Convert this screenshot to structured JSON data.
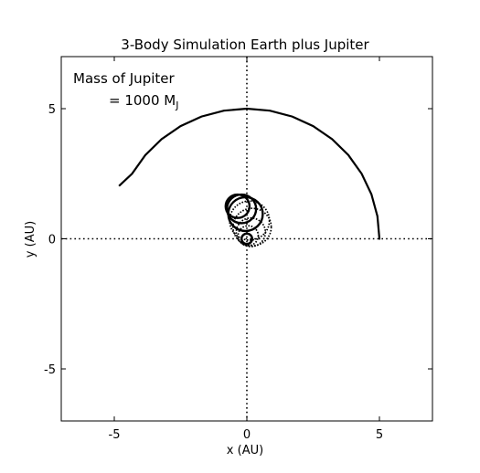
{
  "chart_data": {
    "type": "line",
    "title": "3-Body Simulation   Earth plus Jupiter",
    "xlabel": "x (AU)",
    "ylabel": "y (AU)",
    "xlim": [
      -7,
      7
    ],
    "ylim": [
      -7,
      7
    ],
    "xticks": [
      {
        "value": -5,
        "label": "-5"
      },
      {
        "value": 0,
        "label": "0"
      },
      {
        "value": 5,
        "label": "5"
      }
    ],
    "yticks": [
      {
        "value": -5,
        "label": "-5"
      },
      {
        "value": 0,
        "label": "0"
      },
      {
        "value": 5,
        "label": "5"
      }
    ],
    "grid": false,
    "annotation": {
      "line1": "Mass of Jupiter",
      "line2": "= 1000 M",
      "subscript": "J"
    },
    "series": [
      {
        "style": "solid",
        "x": [
          5.0,
          4.924,
          4.698,
          4.33,
          3.83,
          3.214,
          2.5,
          1.71,
          0.868,
          0.0,
          -0.868,
          -1.71,
          -2.5,
          -3.214,
          -3.83,
          -4.33,
          -4.8
        ],
        "y": [
          0.0,
          0.868,
          1.71,
          2.5,
          3.214,
          3.83,
          4.33,
          4.698,
          4.924,
          5.0,
          4.924,
          4.698,
          4.33,
          3.83,
          3.214,
          2.5,
          2.05
        ]
      }
    ],
    "loops": [
      {
        "cx": 0.0,
        "cy": 0.0,
        "r": 0.2,
        "dense": true
      },
      {
        "cx": 0.05,
        "cy": 0.12,
        "r": 0.38,
        "dense": false
      },
      {
        "cx": 0.15,
        "cy": 0.25,
        "r": 0.55,
        "dense": false
      },
      {
        "cx": 0.2,
        "cy": 0.45,
        "r": 0.72,
        "dense": false
      },
      {
        "cx": 0.1,
        "cy": 0.7,
        "r": 0.75,
        "dense": false
      },
      {
        "cx": -0.05,
        "cy": 0.95,
        "r": 0.65,
        "dense": true
      },
      {
        "cx": -0.2,
        "cy": 1.15,
        "r": 0.55,
        "dense": true
      },
      {
        "cx": -0.35,
        "cy": 1.25,
        "r": 0.45,
        "dense": true
      }
    ]
  }
}
